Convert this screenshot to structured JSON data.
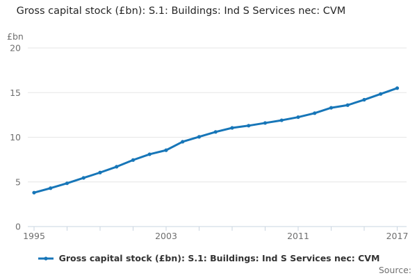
{
  "header": {
    "title": "Gross capital stock (£bn): S.1: Buildings: Ind S Services nec: CVM"
  },
  "legend": {
    "label": "Gross capital stock (£bn): S.1: Buildings: Ind S Services nec: CVM"
  },
  "footer": {
    "source_label": "Source:"
  },
  "chart_data": {
    "type": "line",
    "title": "Gross capital stock (£bn): S.1: Buildings: Ind S Services nec: CVM",
    "ylabel": "£bn",
    "xlabel": "",
    "x": [
      1995,
      1996,
      1997,
      1998,
      1999,
      2000,
      2001,
      2002,
      2003,
      2004,
      2005,
      2006,
      2007,
      2008,
      2009,
      2010,
      2011,
      2012,
      2013,
      2014,
      2015,
      2016,
      2017
    ],
    "series": [
      {
        "name": "Gross capital stock (£bn): S.1: Buildings: Ind S Services nec: CVM",
        "values": [
          3.8,
          4.3,
          4.85,
          5.45,
          6.05,
          6.7,
          7.45,
          8.1,
          8.55,
          9.5,
          10.05,
          10.6,
          11.05,
          11.3,
          11.6,
          11.9,
          12.25,
          12.7,
          13.3,
          13.6,
          14.2,
          14.85,
          15.5
        ]
      }
    ],
    "ylim": [
      0,
      20
    ],
    "yticks": [
      0,
      5,
      10,
      15,
      20
    ],
    "xticks_labeled": [
      1995,
      2003,
      2011,
      2017
    ],
    "xtick_minor_step": 2,
    "grid": true,
    "legend_position": "bottom",
    "colors": {
      "line": "#1776b8",
      "grid": "#e6e6e6",
      "axis": "#c9d4e0",
      "tick_label": "#6e6e6e",
      "title": "#252525",
      "legend_text": "#333333",
      "source_text": "#707070"
    }
  }
}
